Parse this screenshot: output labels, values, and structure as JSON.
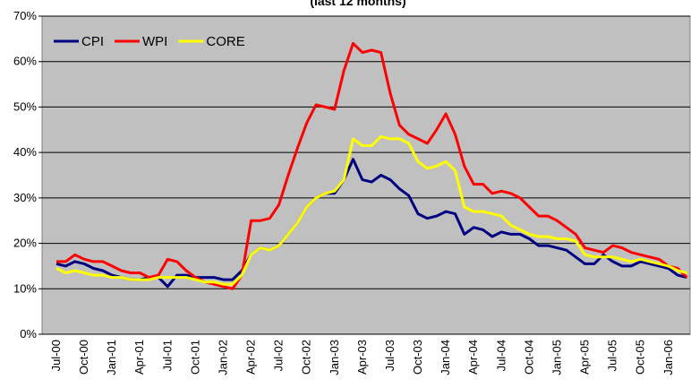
{
  "chart_data": {
    "type": "line",
    "title": "(last 12 months)",
    "categories": [
      "Jul-00",
      null,
      null,
      "Oct-00",
      null,
      null,
      "Jan-01",
      null,
      null,
      "Apr-01",
      null,
      null,
      "Jul-01",
      null,
      null,
      "Oct-01",
      null,
      null,
      "Jan-02",
      null,
      null,
      "Apr-02",
      null,
      null,
      "Jul-02",
      null,
      null,
      "Oct-02",
      null,
      null,
      "Jan-03",
      null,
      null,
      "Apr-03",
      null,
      null,
      "Jul-03",
      null,
      null,
      "Oct-03",
      null,
      null,
      "Jan-04",
      null,
      null,
      "Apr-04",
      null,
      null,
      "Jul-04",
      null,
      null,
      "Oct-04",
      null,
      null,
      "Jan-05",
      null,
      null,
      "Apr-05",
      null,
      null,
      "Jul-05",
      null,
      null,
      "Oct-05",
      null,
      null,
      "Jan-06",
      null,
      null
    ],
    "series": [
      {
        "name": "CPI",
        "color": "#000080",
        "values": [
          15.5,
          15,
          16,
          15.5,
          14.5,
          14,
          13,
          12.5,
          12,
          12,
          12.5,
          12.5,
          10.5,
          13,
          13,
          12.5,
          12.5,
          12.5,
          12,
          12,
          14,
          17.5,
          19,
          18.5,
          19.5,
          22,
          24.5,
          28,
          30,
          31,
          31,
          34,
          38.5,
          34,
          33.5,
          35,
          34,
          32,
          30.5,
          26.5,
          25.5,
          26,
          27,
          26.5,
          22,
          23.5,
          23,
          21.5,
          22.5,
          22,
          22,
          21,
          19.5,
          19.5,
          19,
          18.5,
          17,
          15.5,
          15.5,
          17.5,
          16,
          15,
          15,
          16,
          15.5,
          15,
          14.5,
          13,
          12.5
        ]
      },
      {
        "name": "WPI",
        "color": "#ff0000",
        "values": [
          16,
          16,
          17.5,
          16.5,
          16,
          16,
          15,
          14,
          13.5,
          13.5,
          12.5,
          13,
          16.5,
          16,
          14,
          12.5,
          11.5,
          11,
          10.5,
          10,
          13,
          25,
          25,
          25.5,
          28.5,
          35,
          41,
          46.5,
          50.5,
          50,
          49.5,
          58,
          64,
          62,
          62.5,
          62,
          53,
          46,
          44,
          43,
          42,
          45,
          48.5,
          44,
          37,
          33,
          33,
          31,
          31.5,
          31,
          30,
          28,
          26,
          26,
          25,
          23.5,
          22,
          19,
          18.5,
          18,
          19.5,
          19,
          18,
          17.5,
          17,
          16.5,
          15,
          14.5,
          12.5
        ]
      },
      {
        "name": "CORE",
        "color": "#ffff00",
        "values": [
          14.5,
          13.5,
          14,
          13.5,
          13,
          13,
          12.5,
          12.5,
          12,
          12,
          12,
          12.5,
          12.5,
          12.5,
          12.5,
          12,
          11.5,
          11.5,
          11,
          11,
          13,
          17.5,
          19,
          18.5,
          19.5,
          22,
          24.5,
          28,
          30,
          31,
          31.5,
          34,
          43,
          41.5,
          41.5,
          43.5,
          43,
          43,
          42,
          38,
          36.5,
          37,
          38,
          36,
          28,
          27,
          27,
          26.5,
          26,
          24,
          23,
          22,
          21.5,
          21.5,
          21,
          21,
          20.5,
          17.5,
          17,
          17,
          17,
          16.5,
          16,
          16.5,
          16,
          15.5,
          15,
          14,
          13.5
        ]
      }
    ],
    "ylim": [
      0,
      70
    ],
    "yticks": [
      {
        "value": 0,
        "label": "0%"
      },
      {
        "value": 10,
        "label": "10%"
      },
      {
        "value": 20,
        "label": "20%"
      },
      {
        "value": 30,
        "label": "30%"
      },
      {
        "value": 40,
        "label": "40%"
      },
      {
        "value": 50,
        "label": "50%"
      },
      {
        "value": 60,
        "label": "60%"
      },
      {
        "value": 70,
        "label": "70%"
      }
    ],
    "grid": true,
    "legend": "top-left"
  }
}
